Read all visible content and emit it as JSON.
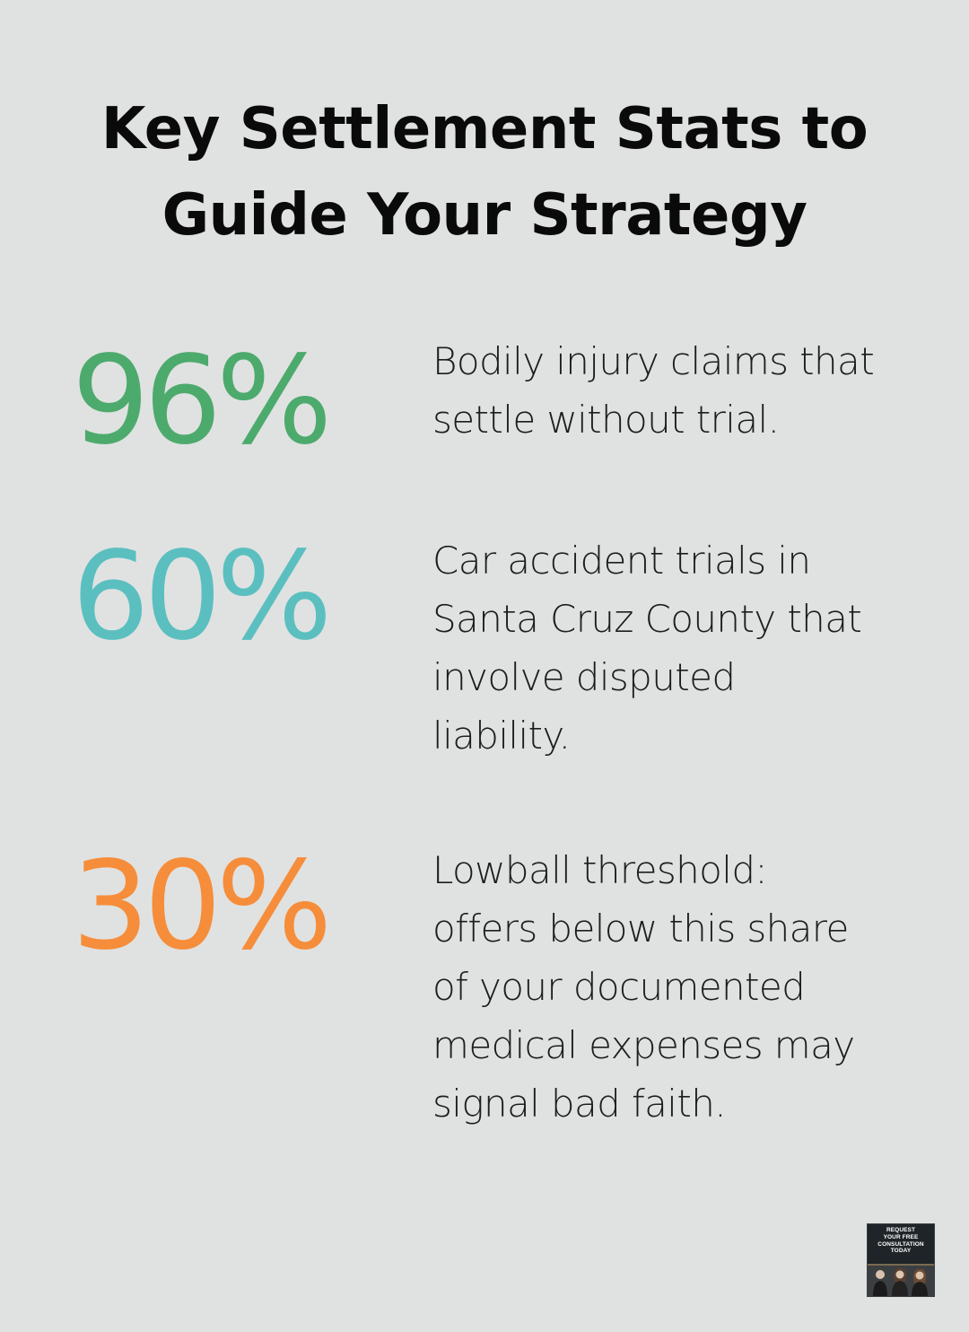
{
  "title": {
    "line1": "Key Settlement Stats to",
    "line2": "Guide Your Strategy"
  },
  "stats": [
    {
      "value": "96%",
      "color": "#4daa6d",
      "lines": [
        "Bodily injury claims that",
        "settle without trial."
      ]
    },
    {
      "value": "60%",
      "color": "#5bbfc0",
      "lines": [
        "Car accident trials in",
        "Santa Cruz County that",
        "involve disputed",
        "liability."
      ]
    },
    {
      "value": "30%",
      "color": "#f68d3a",
      "lines": [
        "Lowball threshold:",
        "offers below this share",
        "of your documented",
        "medical expenses may",
        "signal bad faith."
      ]
    }
  ],
  "badge": {
    "lines": [
      "REQUEST",
      "YOUR FREE",
      "CONSULTATION",
      "TODAY"
    ]
  }
}
